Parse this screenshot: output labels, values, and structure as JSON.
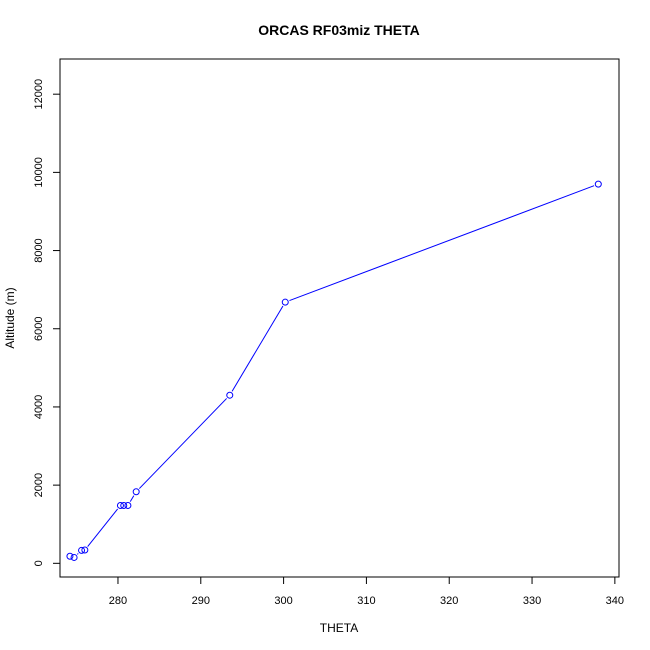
{
  "chart_data": {
    "type": "line",
    "title": "ORCAS RF03miz THETA",
    "xlabel": "THETA",
    "ylabel": "Altitude (m)",
    "xlim": [
      273.0,
      340.5
    ],
    "ylim": [
      -350,
      12900
    ],
    "xticks": [
      280,
      290,
      300,
      310,
      320,
      330,
      340
    ],
    "yticks": [
      0,
      2000,
      4000,
      6000,
      8000,
      10000,
      12000
    ],
    "grid": false,
    "legend": "none",
    "series": [
      {
        "color": "#0000ff",
        "markers": "open-circle",
        "points": [
          {
            "x": 274.2,
            "y": 180
          },
          {
            "x": 274.7,
            "y": 150
          },
          {
            "x": 275.6,
            "y": 330
          },
          {
            "x": 276.0,
            "y": 340
          },
          {
            "x": 280.3,
            "y": 1480
          },
          {
            "x": 280.7,
            "y": 1480
          },
          {
            "x": 281.2,
            "y": 1480
          },
          {
            "x": 282.2,
            "y": 1830
          },
          {
            "x": 293.5,
            "y": 4300
          },
          {
            "x": 300.2,
            "y": 6680
          },
          {
            "x": 338.0,
            "y": 9700
          }
        ]
      }
    ]
  }
}
